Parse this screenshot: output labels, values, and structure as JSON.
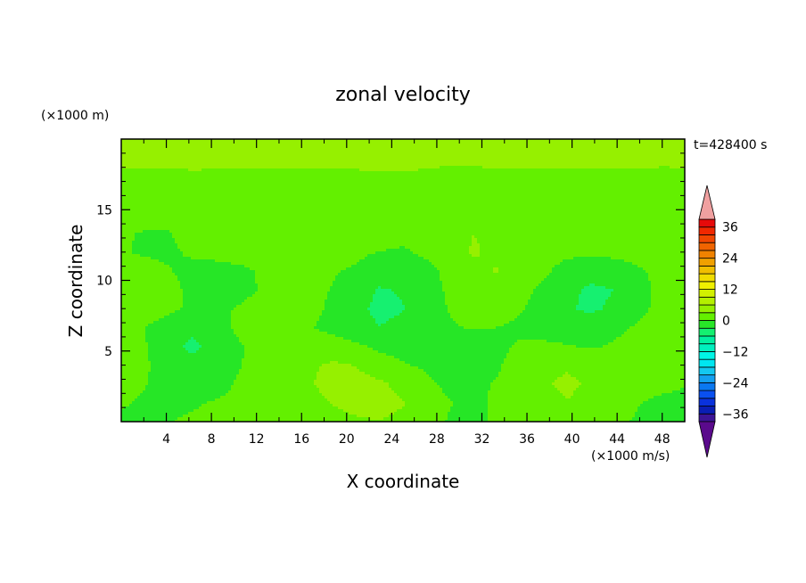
{
  "chart_data": {
    "type": "heatmap",
    "title": "zonal velocity",
    "time_label": "t=428400 s",
    "xlabel": "X coordinate",
    "ylabel": "Z coordinate",
    "x_unit_label": "(×1000 m/s)",
    "y_unit_label": "(×1000 m)",
    "xlim": [
      0,
      50
    ],
    "ylim": [
      0,
      20
    ],
    "x_ticks": [
      4,
      8,
      12,
      16,
      20,
      24,
      28,
      32,
      36,
      40,
      44,
      48
    ],
    "y_ticks": [
      5,
      10,
      15
    ],
    "colorbar": {
      "levels": [
        -42,
        -39,
        -36,
        -33,
        -30,
        -27,
        -24,
        -21,
        -18,
        -15,
        -12,
        -9,
        -6,
        -3,
        0,
        3,
        6,
        9,
        12,
        15,
        18,
        21,
        24,
        27,
        30,
        33,
        36,
        39,
        42
      ],
      "tick_values": [
        36,
        24,
        12,
        0,
        -12,
        -24,
        -36
      ],
      "colors": [
        "#5a0a8c",
        "#3c1496",
        "#0a1eb4",
        "#0a32dc",
        "#0a50f0",
        "#0a78f0",
        "#14a0f0",
        "#14c8f0",
        "#00e6f0",
        "#00f5e6",
        "#00f0be",
        "#00f0a0",
        "#14f070",
        "#28e628",
        "#64f000",
        "#96f000",
        "#b4f000",
        "#d2f000",
        "#f0f000",
        "#f0dc00",
        "#f0be00",
        "#f0a000",
        "#f08200",
        "#f06400",
        "#f04600",
        "#f02800",
        "#e60a0a",
        "#f0a0a0"
      ]
    },
    "grid": [
      [
        5.1,
        4.9,
        4.4,
        4.8,
        5.2,
        5.0,
        4.6,
        4.3,
        4.5,
        4.9,
        5.1,
        5.3,
        5.0,
        4.7,
        4.4,
        4.2,
        4.4,
        4.8,
        5.0,
        5.2,
        5.1,
        4.9,
        4.6,
        4.4,
        4.6
      ],
      [
        4.6,
        4.2,
        3.9,
        4.3,
        4.6,
        4.4,
        4.0,
        3.8,
        4.1,
        4.4,
        4.6,
        4.8,
        4.5,
        4.1,
        3.8,
        3.7,
        3.9,
        4.2,
        4.5,
        4.7,
        4.5,
        4.2,
        4.0,
        3.8,
        4.1
      ],
      [
        2.0,
        2.2,
        2.1,
        2.3,
        2.0,
        1.8,
        2.1,
        2.4,
        2.2,
        1.9,
        2.0,
        2.3,
        2.5,
        2.2,
        1.9,
        2.1,
        2.3,
        2.2,
        2.0,
        1.8,
        2.0,
        2.2,
        2.4,
        2.1,
        2.0
      ],
      [
        0.5,
        0.8,
        0.6,
        0.3,
        0.7,
        1.1,
        1.0,
        0.6,
        0.9,
        1.2,
        1.4,
        1.3,
        1.1,
        1.0,
        0.9,
        0.7,
        0.5,
        0.6,
        0.8,
        0.4,
        0.3,
        0.6,
        0.9,
        0.7,
        0.5
      ],
      [
        0.9,
        1.2,
        0.6,
        0.3,
        0.8,
        0.5,
        0.2,
        0.6,
        0.9,
        0.4,
        1.6,
        2.2,
        2.0,
        1.8,
        2.3,
        2.1,
        1.9,
        2.2,
        1.7,
        1.3,
        0.7,
        0.4,
        0.9,
        1.1,
        0.8
      ],
      [
        0.3,
        -0.2,
        -0.1,
        0.8,
        1.2,
        0.6,
        0.4,
        0.2,
        0.5,
        1.2,
        2.4,
        2.0,
        0.8,
        1.3,
        2.1,
        3.0,
        2.6,
        1.8,
        1.2,
        1.0,
        0.9,
        1.2,
        1.6,
        0.9,
        1.0
      ],
      [
        0.2,
        -0.3,
        -0.5,
        0.4,
        1.0,
        1.3,
        0.9,
        0.5,
        0.3,
        0.7,
        0.6,
        -0.1,
        -0.4,
        0.6,
        2.1,
        3.2,
        2.6,
        1.4,
        0.6,
        0.5,
        0.4,
        0.6,
        0.8,
        0.5,
        0.7
      ],
      [
        0.6,
        0.9,
        0.2,
        -0.8,
        -1.2,
        -0.6,
        0.3,
        0.9,
        0.5,
        0.2,
        -0.3,
        -1.8,
        -2.0,
        -0.9,
        0.8,
        2.6,
        3.1,
        1.9,
        0.4,
        -0.8,
        -1.6,
        -1.2,
        -0.3,
        0.6,
        1.3
      ],
      [
        1.2,
        1.6,
        0.8,
        -0.6,
        -1.4,
        -0.8,
        0.2,
        1.1,
        0.6,
        -0.1,
        -1.6,
        -3.2,
        -2.8,
        -1.2,
        0.5,
        2.3,
        2.4,
        0.9,
        -0.6,
        -2.2,
        -3.6,
        -3.0,
        -1.2,
        0.9,
        2.0
      ],
      [
        1.4,
        1.1,
        0.4,
        -0.3,
        -0.6,
        0.2,
        0.9,
        1.4,
        0.7,
        -0.4,
        -2.2,
        -3.8,
        -3.1,
        -1.5,
        0.2,
        1.8,
        1.5,
        0.2,
        -1.1,
        -2.8,
        -3.4,
        -2.6,
        -0.8,
        0.8,
        1.6
      ],
      [
        0.4,
        0.0,
        -0.9,
        -2.4,
        -1.2,
        0.6,
        1.3,
        0.8,
        0.2,
        -0.8,
        -1.9,
        -2.9,
        -2.3,
        -1.1,
        -0.3,
        0.2,
        0.0,
        -0.6,
        -1.4,
        -1.9,
        -1.6,
        -0.7,
        0.3,
        1.1,
        1.9
      ],
      [
        0.9,
        0.2,
        -2.0,
        -3.5,
        -2.2,
        -0.3,
        0.9,
        1.5,
        1.8,
        1.4,
        0.5,
        -0.6,
        -0.9,
        -0.4,
        -0.8,
        -1.2,
        -0.7,
        0.4,
        0.6,
        0.2,
        -0.3,
        0.3,
        1.2,
        2.1,
        2.5
      ],
      [
        1.2,
        0.4,
        -1.4,
        -2.3,
        -1.6,
        -0.2,
        1.1,
        2.0,
        2.6,
        3.4,
        2.9,
        1.1,
        0.2,
        -0.4,
        -1.1,
        -0.9,
        -0.3,
        1.0,
        2.2,
        2.7,
        2.0,
        1.2,
        1.3,
        1.8,
        1.2
      ],
      [
        0.7,
        0.1,
        -1.0,
        -1.4,
        -1.0,
        0.3,
        1.5,
        2.1,
        2.8,
        3.8,
        4.2,
        3.6,
        1.9,
        0.6,
        -0.7,
        -0.5,
        0.2,
        1.4,
        2.8,
        3.5,
        2.6,
        1.5,
        0.7,
        0.5,
        0.2
      ],
      [
        0.2,
        -0.3,
        -0.6,
        -0.3,
        0.2,
        0.6,
        1.2,
        1.6,
        2.2,
        3.1,
        3.9,
        4.3,
        3.2,
        1.5,
        0.1,
        -0.4,
        0.3,
        1.0,
        2.1,
        2.9,
        2.2,
        1.0,
        0.1,
        -0.4,
        -0.7
      ],
      [
        -0.3,
        -0.5,
        -0.1,
        0.4,
        0.6,
        0.9,
        1.0,
        0.8,
        1.2,
        2.0,
        2.6,
        2.9,
        2.2,
        0.9,
        -0.2,
        -0.3,
        0.2,
        0.7,
        1.1,
        1.3,
        0.9,
        0.3,
        -0.2,
        -0.6,
        -1.2
      ]
    ]
  }
}
